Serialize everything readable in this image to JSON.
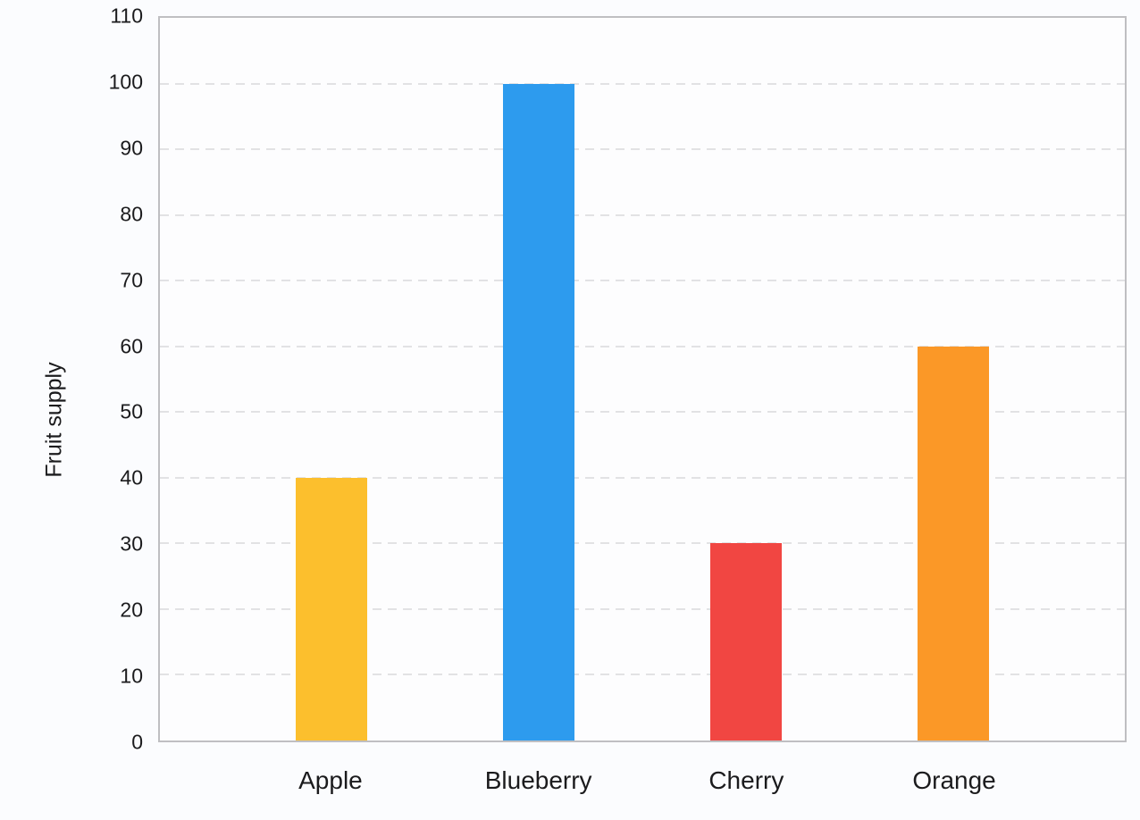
{
  "chart_data": {
    "type": "bar",
    "categories": [
      "Apple",
      "Blueberry",
      "Cherry",
      "Orange"
    ],
    "values": [
      40,
      100,
      30,
      60
    ],
    "bar_colors": [
      "#fcbf2d",
      "#2d9bee",
      "#f14642",
      "#fb9827"
    ],
    "title": "",
    "xlabel": "",
    "ylabel": "Fruit supply",
    "ylim": [
      0,
      110
    ],
    "yticks": [
      0,
      10,
      20,
      30,
      40,
      50,
      60,
      70,
      80,
      90,
      100,
      110
    ],
    "grid": "horizontal-dashed",
    "legend": "none",
    "colors": {
      "plot_border": "#bfbfc2",
      "grid_line": "#e2e2e4",
      "background": "#fbfcfe",
      "text": "#1b1b1d"
    }
  }
}
